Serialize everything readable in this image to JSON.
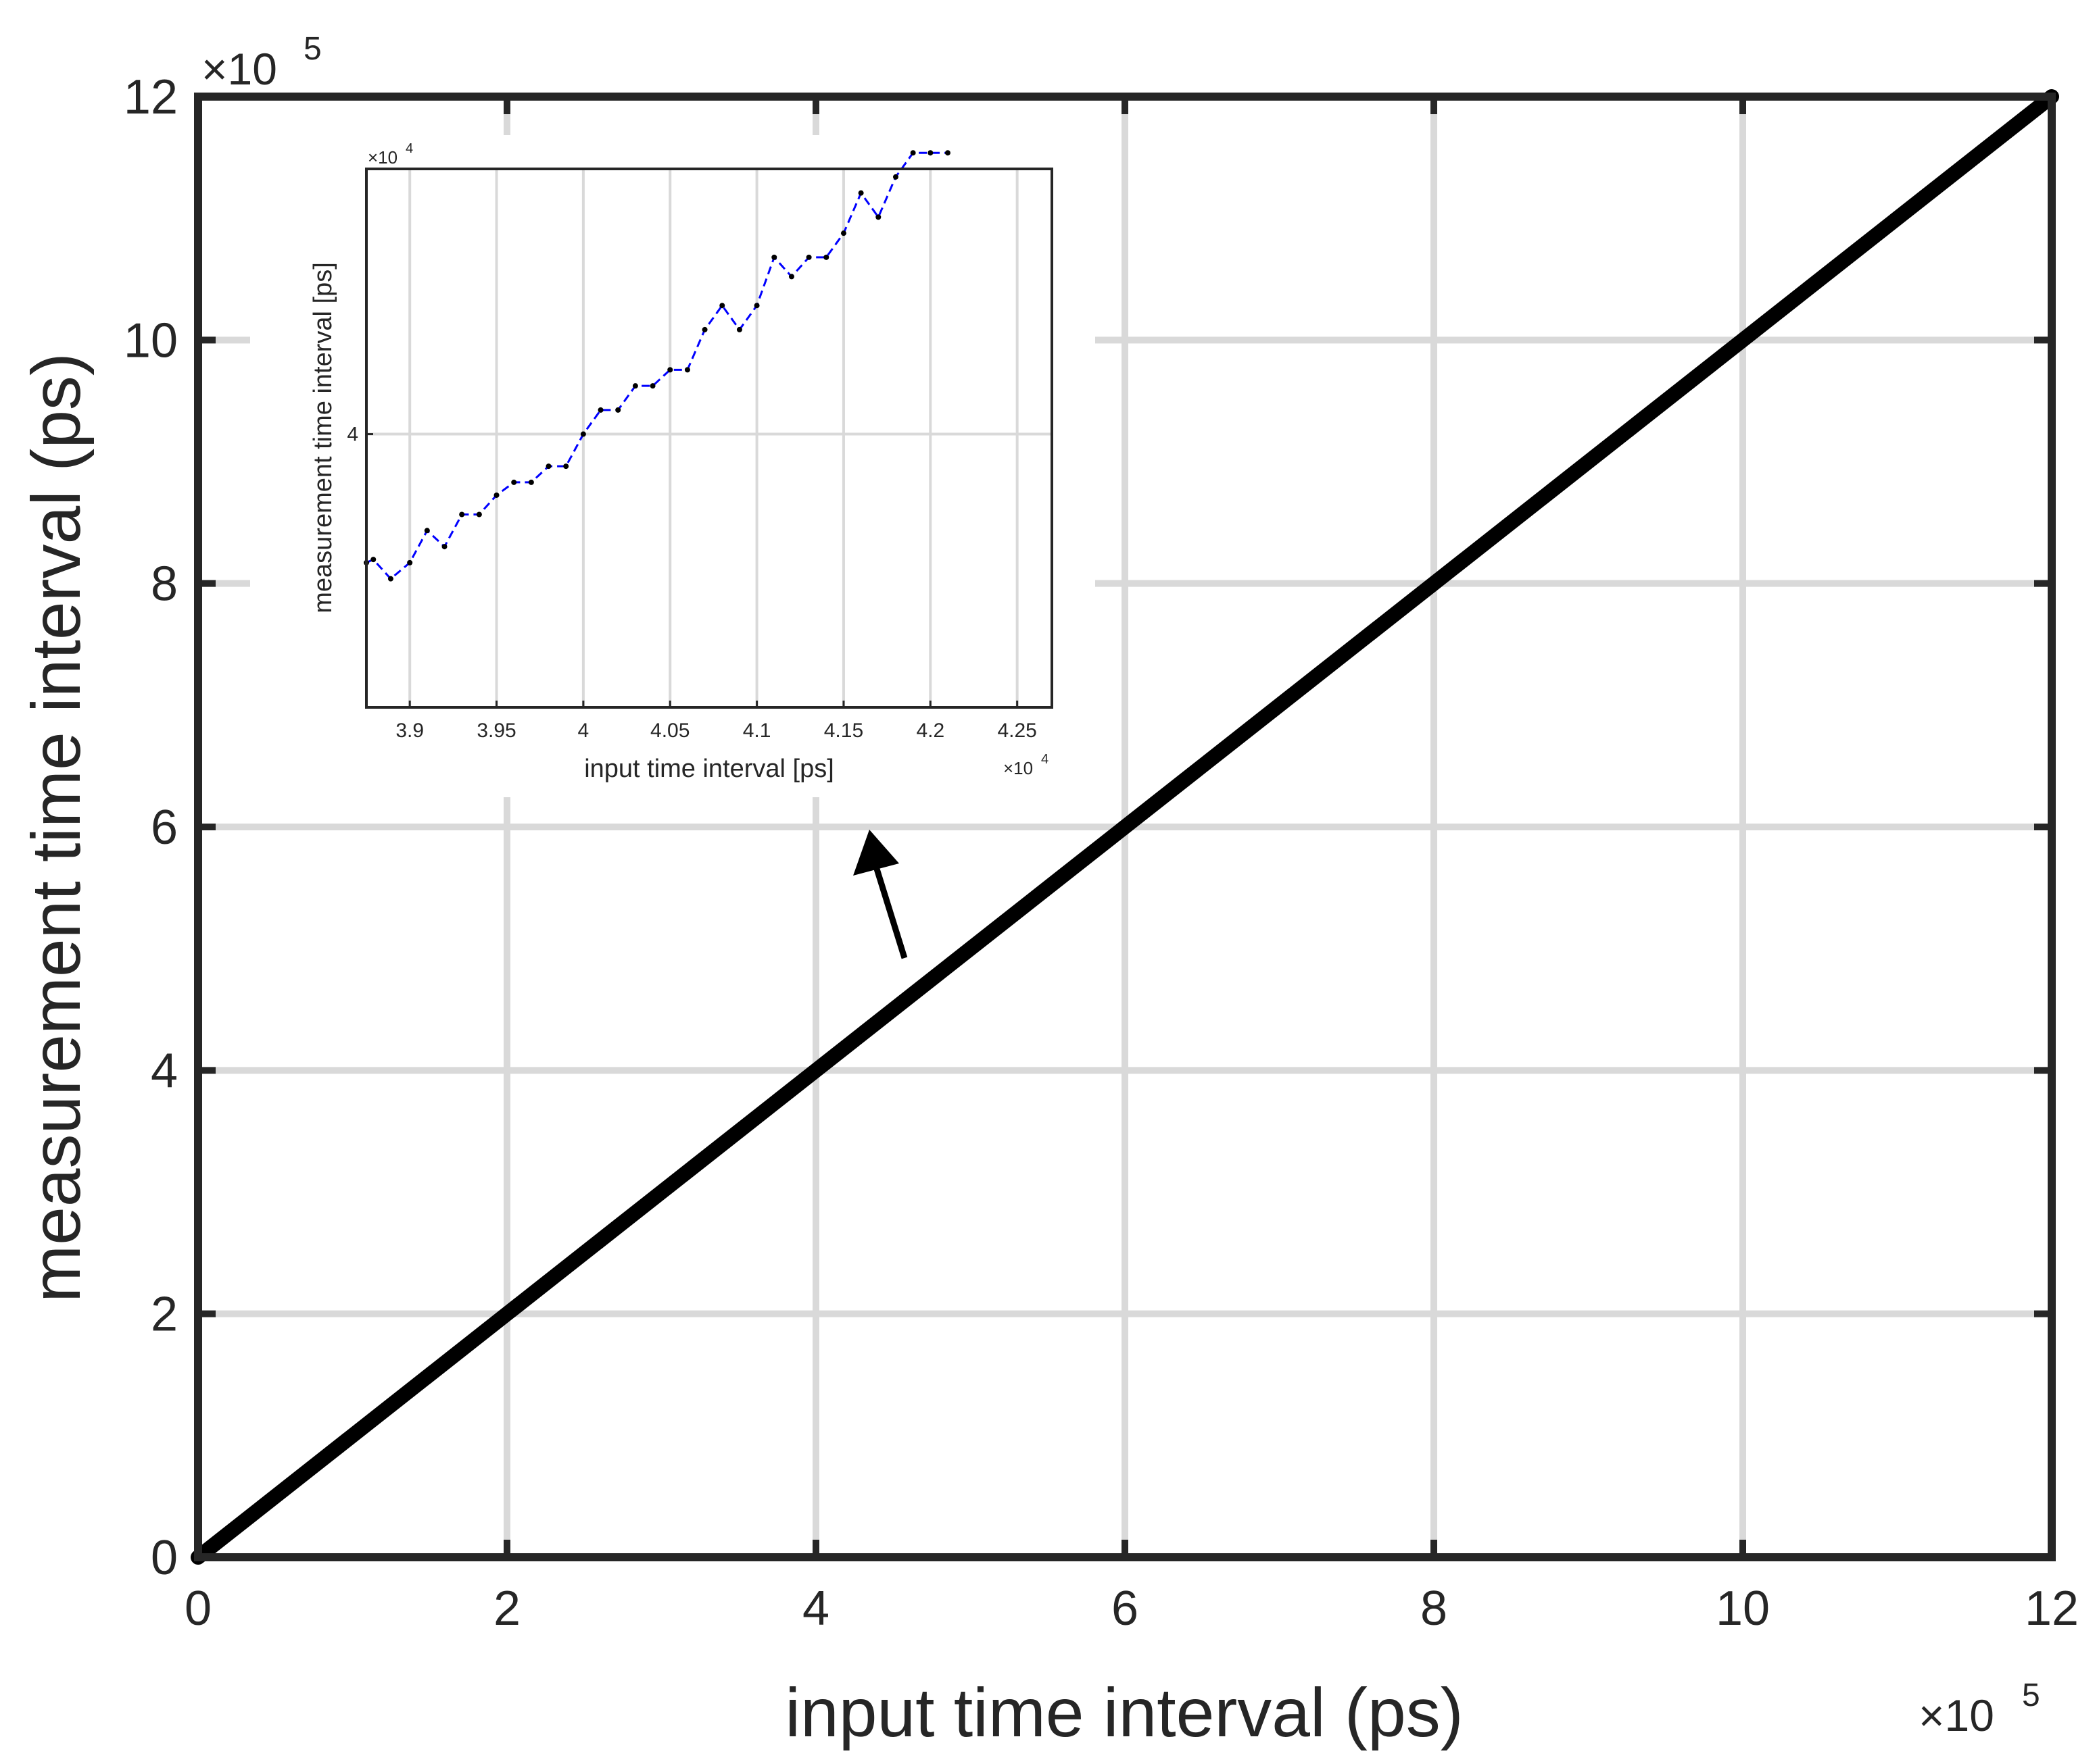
{
  "chart_data": [
    {
      "type": "line",
      "xlabel": "input time interval (ps)",
      "ylabel": "measurement time interval (ps)",
      "x_exponent_label": "×10",
      "x_exponent_power": "5",
      "y_exponent_label": "×10",
      "y_exponent_power": "5",
      "x_scale": 100000,
      "y_scale": 100000,
      "xlim": [
        0,
        1200000
      ],
      "ylim": [
        0,
        1200000
      ],
      "x_ticks": [
        0,
        2,
        4,
        6,
        8,
        10,
        12
      ],
      "y_ticks": [
        0,
        2,
        4,
        6,
        8,
        10,
        12
      ],
      "grid": true,
      "series": [
        {
          "color": "#000000",
          "x": [
            0,
            1200000
          ],
          "y": [
            0,
            1200000
          ]
        }
      ]
    },
    {
      "type": "line",
      "xlabel": "input time interval [ps]",
      "ylabel": "measurement time interval [ps]",
      "x_exponent_label": "×10",
      "x_exponent_power": "4",
      "y_exponent_label": "×10",
      "y_exponent_power": "4",
      "x_scale": 10000,
      "y_scale": 10000,
      "xlim": [
        38750,
        42700
      ],
      "ylim": [
        38300,
        41650
      ],
      "x_ticks": [
        "3.9",
        "3.95",
        "4",
        "4.05",
        "4.1",
        "4.15",
        "4.2",
        "4.25"
      ],
      "y_ticks": [
        "4"
      ],
      "grid": true,
      "series": [
        {
          "color": "#0000ff",
          "line_style": "dashed",
          "marker_color": "#000000",
          "x": [
            38750,
            38790,
            38890,
            39000,
            39100,
            39200,
            39300,
            39400,
            39500,
            39600,
            39700,
            39800,
            39900,
            40000,
            40100,
            40200,
            40300,
            40400,
            40500,
            40600,
            40700,
            40800,
            40900,
            41000,
            41100,
            41200,
            41300,
            41400,
            41500,
            41600,
            41700,
            41800,
            41900,
            42000,
            42100
          ],
          "y": [
            39200,
            39220,
            39100,
            39200,
            39400,
            39300,
            39500,
            39500,
            39620,
            39700,
            39700,
            39800,
            39800,
            40000,
            40150,
            40150,
            40300,
            40300,
            40400,
            40400,
            40650,
            40800,
            40650,
            40800,
            41100,
            40980,
            41100,
            41100,
            41250,
            41500,
            41350,
            41600,
            41750,
            41750,
            41750
          ]
        }
      ]
    }
  ]
}
